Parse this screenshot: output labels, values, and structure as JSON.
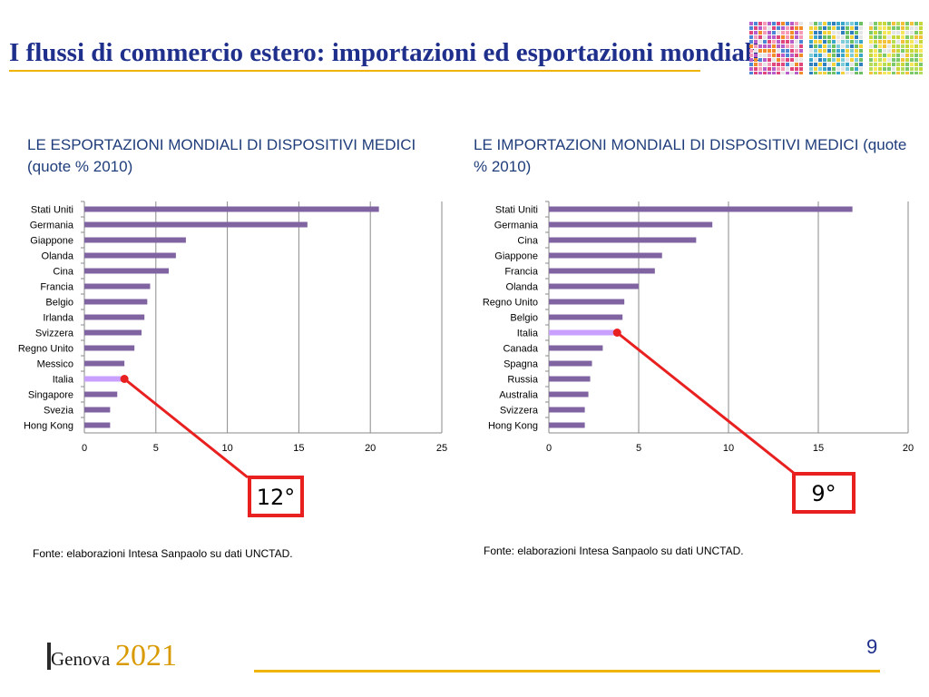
{
  "slide": {
    "title": "I flussi di commercio estero: importazioni ed esportazioni mondiali",
    "page_number": "9",
    "source_left": "Fonte: elaborazioni Intesa Sanpaolo su dati UNCTAD.",
    "source_right": "Fonte: elaborazioni Intesa Sanpaolo su dati UNCTAD.",
    "logo_city": "Genova",
    "logo_year": "2021",
    "colors": {
      "title": "#1f2f8c",
      "accent_rule": "#f0b400",
      "bar": "#8064a2",
      "highlight_bar": "#c9a0ff",
      "callout": "#e82020"
    }
  },
  "chart_data": [
    {
      "type": "bar",
      "orientation": "horizontal",
      "title": "LE ESPORTAZIONI MONDIALI DI DISPOSITIVI MEDICI (quote % 2010)",
      "categories": [
        "Stati Uniti",
        "Germania",
        "Giappone",
        "Olanda",
        "Cina",
        "Francia",
        "Belgio",
        "Irlanda",
        "Svizzera",
        "Regno Unito",
        "Messico",
        "Italia",
        "Singapore",
        "Svezia",
        "Hong Kong"
      ],
      "values": [
        20.6,
        15.6,
        7.1,
        6.4,
        5.9,
        4.6,
        4.4,
        4.2,
        4.0,
        3.5,
        2.8,
        2.8,
        2.3,
        1.8,
        1.8
      ],
      "highlight": "Italia",
      "xlim": [
        0,
        25
      ],
      "xticks": [
        0,
        5,
        10,
        15,
        20,
        25
      ],
      "grid": true,
      "rank_label": "12°"
    },
    {
      "type": "bar",
      "orientation": "horizontal",
      "title": "LE IMPORTAZIONI MONDIALI DI DISPOSITIVI MEDICI (quote % 2010)",
      "categories": [
        "Stati Uniti",
        "Germania",
        "Cina",
        "Giappone",
        "Francia",
        "Olanda",
        "Regno Unito",
        "Belgio",
        "Italia",
        "Canada",
        "Spagna",
        "Russia",
        "Australia",
        "Svizzera",
        "Hong Kong"
      ],
      "values": [
        16.9,
        9.1,
        8.2,
        6.3,
        5.9,
        5.0,
        4.2,
        4.1,
        3.8,
        3.0,
        2.4,
        2.3,
        2.2,
        2.0,
        2.0
      ],
      "highlight": "Italia",
      "xlim": [
        0,
        20
      ],
      "xticks": [
        0,
        5,
        10,
        15,
        20
      ],
      "grid": true,
      "rank_label": "9°"
    }
  ]
}
